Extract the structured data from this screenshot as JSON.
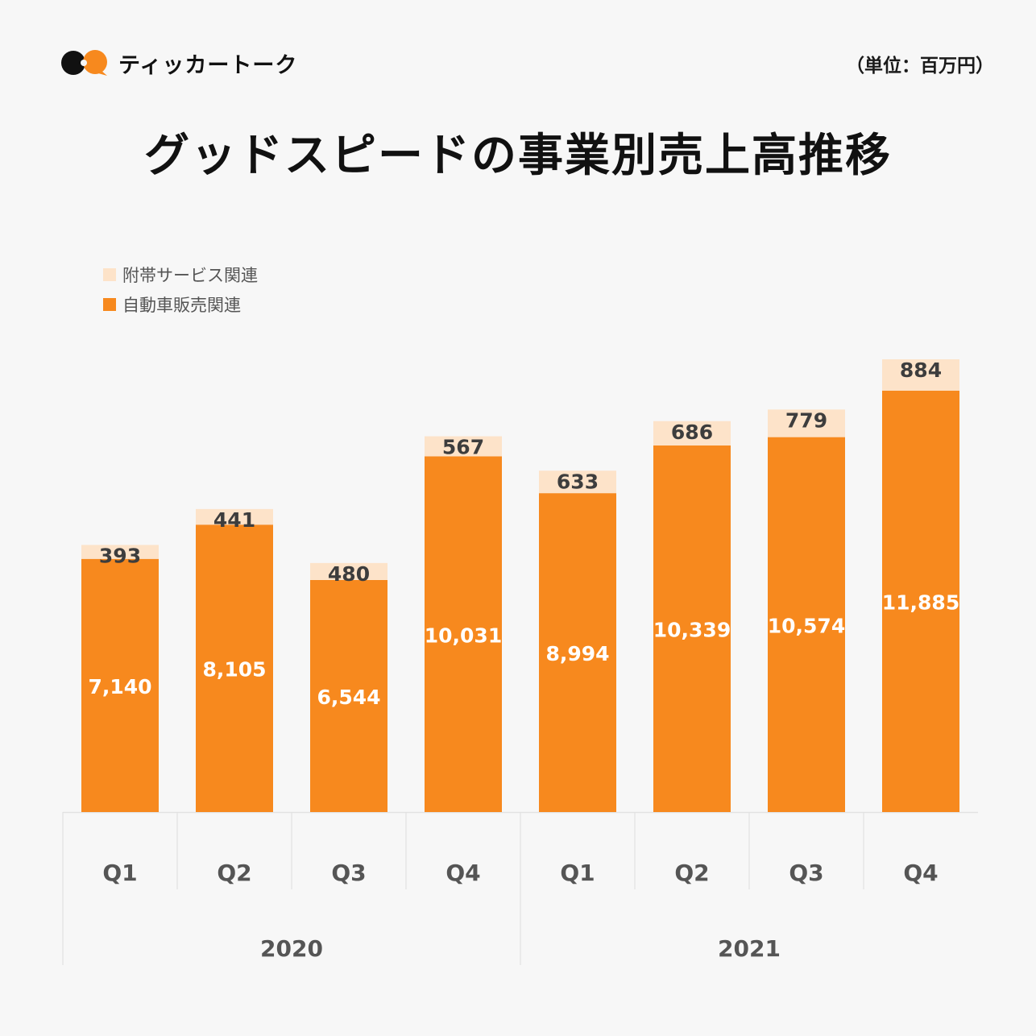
{
  "header": {
    "logo_text": "ティッカートーク",
    "unit_label": "（単位：百万円）",
    "title": "グッドスピードの事業別売上高推移"
  },
  "colors": {
    "primary": "#f7891e",
    "secondary": "#fde3c9",
    "logo_dark": "#111111",
    "background": "#f7f7f7",
    "label_dark": "#3d3d3d",
    "label_light": "#ffffff",
    "axis_text": "#555555",
    "grid": "#e2e2e2"
  },
  "chart_data": {
    "type": "bar",
    "stacked": true,
    "title": "グッドスピードの事業別売上高推移",
    "unit": "百万円",
    "categories": [
      "Q1",
      "Q2",
      "Q3",
      "Q4",
      "Q1",
      "Q2",
      "Q3",
      "Q4"
    ],
    "groups": [
      {
        "label": "2020",
        "span": 4
      },
      {
        "label": "2021",
        "span": 4
      }
    ],
    "series": [
      {
        "name": "自動車販売関連",
        "color": "#f7891e",
        "values": [
          7140,
          8105,
          6544,
          10031,
          8994,
          10339,
          10574,
          11885
        ],
        "labels": [
          "7,140",
          "8,105",
          "6,544",
          "10,031",
          "8,994",
          "10,339",
          "10,574",
          "11,885"
        ]
      },
      {
        "name": "附帯サービス関連",
        "color": "#fde3c9",
        "values": [
          393,
          441,
          480,
          567,
          633,
          686,
          779,
          884
        ],
        "labels": [
          "393",
          "441",
          "480",
          "567",
          "633",
          "686",
          "779",
          "884"
        ]
      }
    ],
    "legend": [
      "附帯サービス関連",
      "自動車販売関連"
    ],
    "legend_position": "top-left",
    "ylim": [
      0,
      12769
    ],
    "y_axis_visible": false,
    "grid": false
  }
}
